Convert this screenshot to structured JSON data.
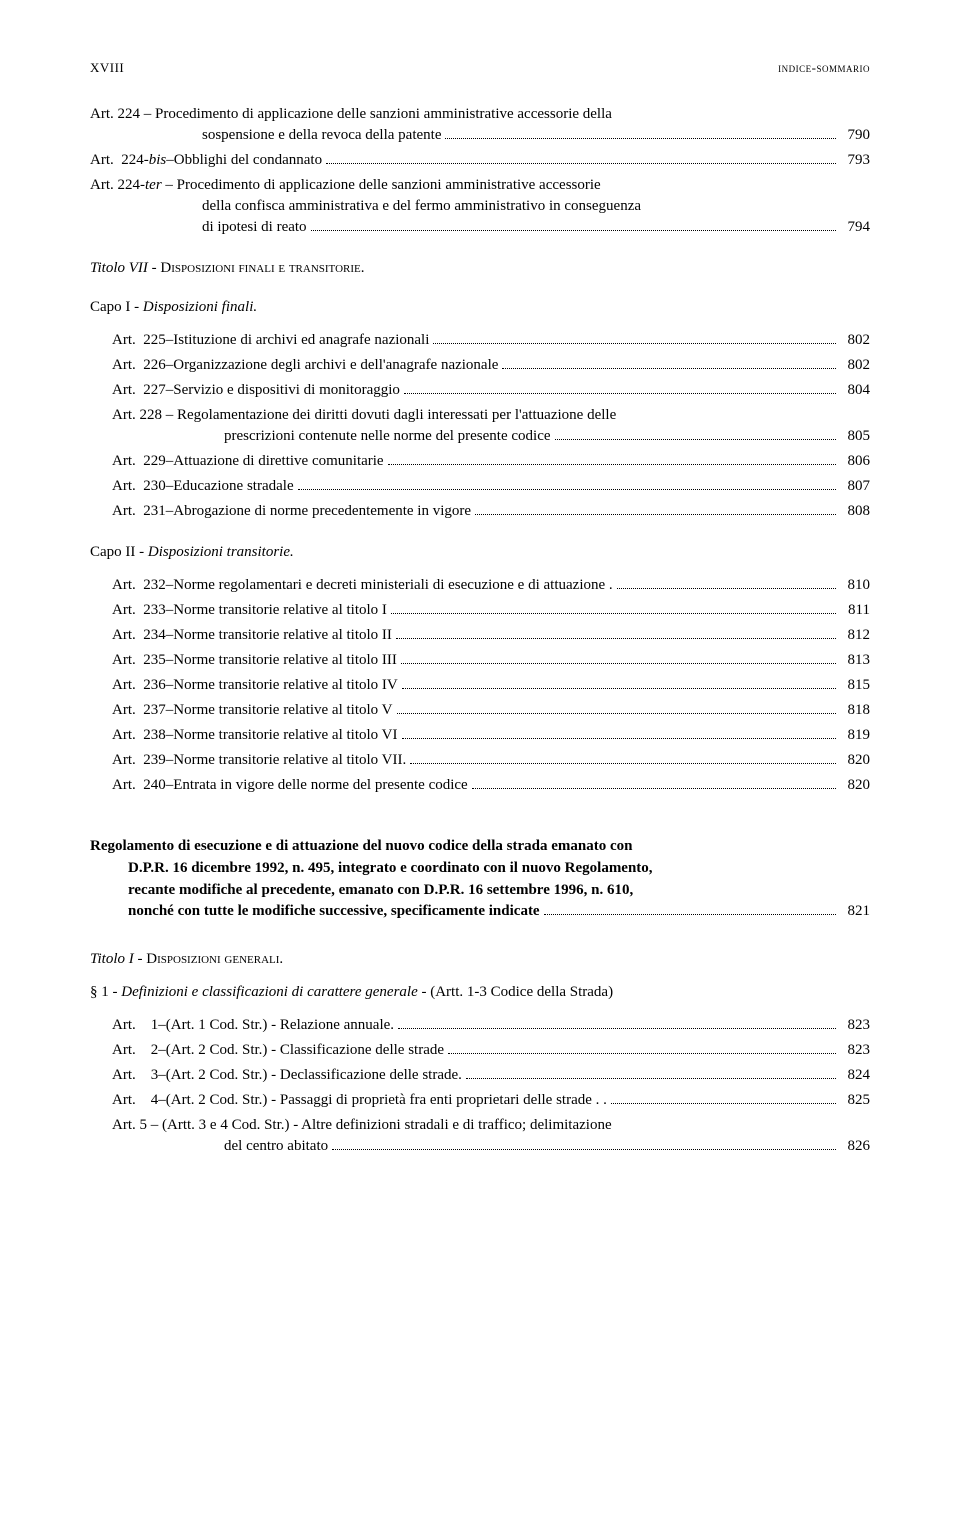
{
  "header": {
    "roman": "XVIII",
    "title": "indice-sommario"
  },
  "block1": [
    {
      "type": "multi",
      "label": "Art.  224",
      "sep": " – ",
      "lines": [
        "Procedimento di applicazione delle sanzioni amministrative accessorie della",
        "sospensione e della revoca della patente"
      ],
      "page": "790"
    },
    {
      "type": "single",
      "label": "Art.  224-",
      "labelItalic": "bis",
      "sep": " – ",
      "text": "Obblighi del condannato",
      "page": "793"
    },
    {
      "type": "multi",
      "label": "Art.  224-",
      "labelItalic": "ter",
      "sep": " – ",
      "lines": [
        "Procedimento di applicazione delle sanzioni amministrative accessorie",
        "della confisca amministrativa e del fermo amministrativo in conseguenza",
        "di ipotesi di reato"
      ],
      "page": "794"
    }
  ],
  "titolo7": {
    "prefix": "Titolo VII",
    "dash": " - ",
    "rest": "Disposizioni finali e transitorie."
  },
  "capo1": {
    "prefix": "Capo I",
    "dash": " - ",
    "rest": "Disposizioni finali."
  },
  "block2": [
    {
      "label": "Art.  225",
      "sep": " – ",
      "text": "Istituzione di archivi ed anagrafe nazionali",
      "page": "802"
    },
    {
      "label": "Art.  226",
      "sep": " – ",
      "text": "Organizzazione degli archivi e dell'anagrafe nazionale",
      "page": "802"
    },
    {
      "label": "Art.  227",
      "sep": " – ",
      "text": "Servizio e dispositivi di monitoraggio",
      "page": "804"
    },
    {
      "type": "multi",
      "label": "Art.  228",
      "sep": " – ",
      "lines": [
        "Regolamentazione dei diritti dovuti dagli interessati per l'attuazione delle",
        "prescrizioni contenute nelle norme del presente codice"
      ],
      "page": "805"
    },
    {
      "label": "Art.  229",
      "sep": " – ",
      "text": "Attuazione di direttive comunitarie",
      "page": "806"
    },
    {
      "label": "Art.  230",
      "sep": " – ",
      "text": "Educazione stradale",
      "page": "807"
    },
    {
      "label": "Art.  231",
      "sep": " – ",
      "text": "Abrogazione di norme precedentemente in vigore",
      "page": "808"
    }
  ],
  "capo2": {
    "prefix": "Capo II",
    "dash": " - ",
    "rest": "Disposizioni transitorie."
  },
  "block3": [
    {
      "label": "Art.  232",
      "sep": " – ",
      "text": "Norme regolamentari e decreti ministeriali di esecuzione e di attuazione .",
      "page": "810",
      "nodots": false
    },
    {
      "label": "Art.  233",
      "sep": " – ",
      "text": "Norme transitorie relative al titolo I",
      "page": "811"
    },
    {
      "label": "Art.  234",
      "sep": " – ",
      "text": "Norme transitorie relative al titolo II",
      "page": "812"
    },
    {
      "label": "Art.  235",
      "sep": " – ",
      "text": "Norme transitorie relative al titolo III",
      "page": "813"
    },
    {
      "label": "Art.  236",
      "sep": " – ",
      "text": "Norme transitorie relative al titolo IV",
      "page": "815"
    },
    {
      "label": "Art.  237",
      "sep": " – ",
      "text": "Norme transitorie relative al titolo V",
      "page": "818"
    },
    {
      "label": "Art.  238",
      "sep": " – ",
      "text": "Norme transitorie relative al titolo VI",
      "page": "819"
    },
    {
      "label": "Art.  239",
      "sep": " – ",
      "text": "Norme transitorie relative al titolo VII.",
      "page": "820"
    },
    {
      "label": "Art.  240",
      "sep": " – ",
      "text": "Entrata in vigore delle norme del presente codice",
      "page": "820"
    }
  ],
  "regolamento": {
    "lines": [
      "Regolamento di esecuzione e di attuazione del nuovo codice della strada emanato con",
      "D.P.R. 16 dicembre 1992, n. 495, integrato e coordinato con il nuovo Regolamento,",
      "recante modifiche al precedente, emanato con D.P.R. 16 settembre 1996, n. 610,",
      "nonché con tutte le modifiche successive, specificamente indicate"
    ],
    "page": "821"
  },
  "titolo1": {
    "prefix": "Titolo I",
    "dash": " - ",
    "rest": "Disposizioni generali."
  },
  "para1": {
    "prefix": "§ 1",
    "dash": " - ",
    "rest": "Definizioni e classificazioni di carattere generale",
    "tail": " - (Artt. 1-3 Codice della Strada)"
  },
  "block4": [
    {
      "label": "Art.    1",
      "sep": " – ",
      "text": "(Art. 1 Cod. Str.) -  Relazione annuale.",
      "page": "823"
    },
    {
      "label": "Art.    2",
      "sep": " – ",
      "text": "(Art. 2 Cod. Str.) -  Classificazione delle strade",
      "page": "823"
    },
    {
      "label": "Art.    3",
      "sep": " – ",
      "text": "(Art. 2 Cod. Str.) -  Declassificazione delle strade.",
      "page": "824"
    },
    {
      "label": "Art.    4",
      "sep": " – ",
      "text": "(Art. 2 Cod. Str.) -  Passaggi di proprietà fra enti proprietari delle strade . .",
      "page": "825"
    },
    {
      "type": "multi",
      "label": "Art.    5",
      "sep": " – ",
      "lines": [
        "(Artt. 3 e 4 Cod. Str.) -  Altre definizioni stradali e di traffico; delimitazione",
        "del centro abitato"
      ],
      "page": "826"
    }
  ]
}
